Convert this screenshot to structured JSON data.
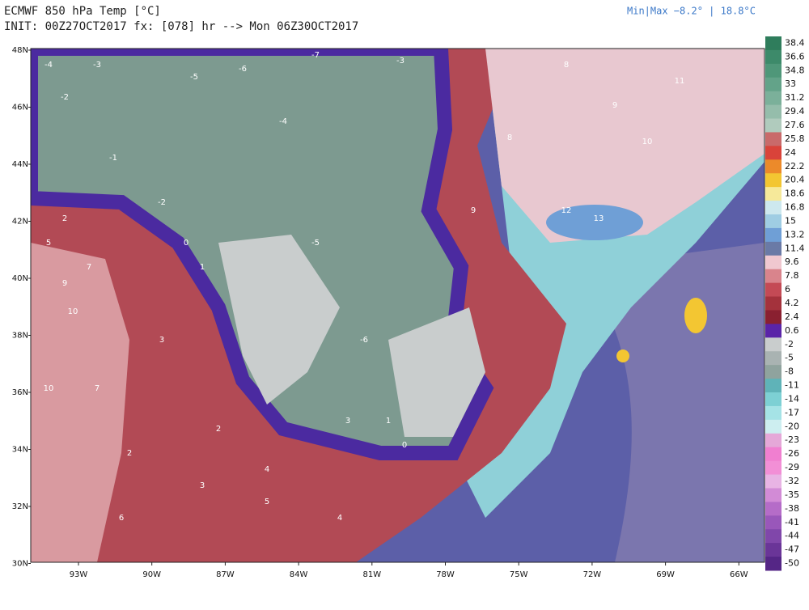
{
  "header": {
    "title": "ECMWF 850 hPa Temp [°C]",
    "init": "INIT: 00Z27OCT2017 fx: [078] hr --> Mon 06Z30OCT2017",
    "minmax": "Min|Max −8.2° | 18.8°C"
  },
  "map": {
    "lat_labels": [
      "48N",
      "46N",
      "44N",
      "42N",
      "40N",
      "38N",
      "36N",
      "34N",
      "32N",
      "30N"
    ],
    "lon_labels": [
      "93W",
      "90W",
      "87W",
      "84W",
      "81W",
      "78W",
      "75W",
      "72W",
      "69W",
      "66W"
    ],
    "station_values": [
      "-4",
      "-3",
      "-2",
      "-5",
      "-6",
      "-7",
      "-3",
      "-4",
      "-2",
      "-1",
      "0",
      "1",
      "2",
      "5",
      "7",
      "9",
      "10",
      "3",
      "2",
      "4",
      "3",
      "1",
      "0",
      "-6",
      "-5",
      "8",
      "9",
      "10",
      "11",
      "12",
      "13",
      "8",
      "9",
      "4",
      "5",
      "3",
      "2",
      "6",
      "7",
      "10"
    ]
  },
  "colorbar": {
    "labels": [
      "38.4",
      "36.6",
      "34.8",
      "33",
      "31.2",
      "29.4",
      "27.6",
      "25.8",
      "24",
      "22.2",
      "20.4",
      "18.6",
      "16.8",
      "15",
      "13.2",
      "11.4",
      "9.6",
      "7.8",
      "6",
      "4.2",
      "2.4",
      "0.6",
      "-2",
      "-5",
      "-8",
      "-11",
      "-14",
      "-17",
      "-20",
      "-23",
      "-26",
      "-29",
      "-32",
      "-35",
      "-38",
      "-41",
      "-44",
      "-47",
      "-50"
    ],
    "colors": [
      "#2f7d5c",
      "#3d8a6a",
      "#4f9779",
      "#63a389",
      "#7bb09a",
      "#95bdab",
      "#b0cbbd",
      "#c96a6a",
      "#d9433a",
      "#ec8a2a",
      "#f3c632",
      "#f6e99a",
      "#cde8ee",
      "#9fcde3",
      "#6f9fd6",
      "#6a7aa6",
      "#f0c8d0",
      "#d9848c",
      "#c44a55",
      "#a4323c",
      "#8a2030",
      "#5a24a8",
      "#c9cdcd",
      "#a9b3b2",
      "#8fa39e",
      "#5fb3b8",
      "#7dd0d4",
      "#a5e3e6",
      "#cdeef0",
      "#e5a8d8",
      "#f07fd0",
      "#f28fd6",
      "#e8b4e4",
      "#d28bd6",
      "#b56cc8",
      "#9957ba",
      "#8047aa",
      "#6a3598",
      "#552686"
    ]
  }
}
